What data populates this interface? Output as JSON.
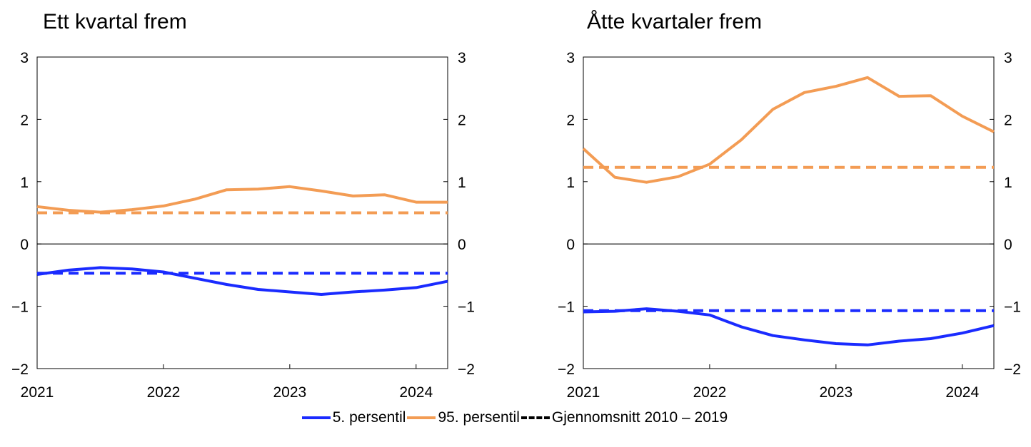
{
  "colors": {
    "p5": "#1a2bff",
    "p95": "#f39c54",
    "avg": "#0a1a8a"
  },
  "legend": [
    {
      "label": "5. persentil",
      "color": "#1a2bff",
      "dash": false
    },
    {
      "label": "95. persentil",
      "color": "#f39c54",
      "dash": false
    },
    {
      "label": "Gjennomsnitt 2010 – 2019",
      "color": "#000000",
      "dash": true
    }
  ],
  "chart_data": [
    {
      "type": "line",
      "title": "Ett kvartal frem",
      "x": [
        "2021Q1",
        "2021Q2",
        "2021Q3",
        "2021Q4",
        "2022Q1",
        "2022Q2",
        "2022Q3",
        "2022Q4",
        "2023Q1",
        "2023Q2",
        "2023Q3",
        "2023Q4",
        "2024Q1",
        "2024Q2"
      ],
      "x_ticks": [
        "2021",
        "2022",
        "2023",
        "2024"
      ],
      "y_ticks": [
        "3",
        "2",
        "1",
        "0",
        "−1",
        "−2"
      ],
      "ylim": [
        -2,
        3
      ],
      "grid": false,
      "series": [
        {
          "name": "95. persentil",
          "color": "#f39c54",
          "values": [
            0.6,
            0.54,
            0.51,
            0.55,
            0.61,
            0.72,
            0.87,
            0.88,
            0.92,
            0.85,
            0.77,
            0.79,
            0.67,
            0.67
          ]
        },
        {
          "name": "5. persentil",
          "color": "#1a2bff",
          "values": [
            -0.49,
            -0.42,
            -0.38,
            -0.4,
            -0.45,
            -0.55,
            -0.65,
            -0.73,
            -0.77,
            -0.81,
            -0.77,
            -0.74,
            -0.7,
            -0.6
          ]
        }
      ],
      "averages": [
        {
          "series": "95. persentil",
          "value": 0.5,
          "color": "#f39c54"
        },
        {
          "series": "5. persentil",
          "value": -0.47,
          "color": "#1a2bff"
        }
      ]
    },
    {
      "type": "line",
      "title": "Åtte kvartaler frem",
      "x": [
        "2021Q1",
        "2021Q2",
        "2021Q3",
        "2021Q4",
        "2022Q1",
        "2022Q2",
        "2022Q3",
        "2022Q4",
        "2023Q1",
        "2023Q2",
        "2023Q3",
        "2023Q4",
        "2024Q1",
        "2024Q2"
      ],
      "x_ticks": [
        "2021",
        "2022",
        "2023",
        "2024"
      ],
      "y_ticks": [
        "3",
        "2",
        "1",
        "0",
        "−1",
        "−2"
      ],
      "ylim": [
        -2,
        3
      ],
      "grid": false,
      "series": [
        {
          "name": "95. persentil",
          "color": "#f39c54",
          "values": [
            1.53,
            1.07,
            0.99,
            1.08,
            1.28,
            1.67,
            2.16,
            2.43,
            2.53,
            2.67,
            2.37,
            2.38,
            2.05,
            1.8
          ]
        },
        {
          "name": "5. persentil",
          "color": "#1a2bff",
          "values": [
            -1.09,
            -1.08,
            -1.04,
            -1.08,
            -1.14,
            -1.33,
            -1.47,
            -1.54,
            -1.6,
            -1.62,
            -1.56,
            -1.52,
            -1.43,
            -1.31
          ]
        }
      ],
      "averages": [
        {
          "series": "95. persentil",
          "value": 1.23,
          "color": "#f39c54"
        },
        {
          "series": "5. persentil",
          "value": -1.07,
          "color": "#1a2bff"
        }
      ]
    }
  ]
}
